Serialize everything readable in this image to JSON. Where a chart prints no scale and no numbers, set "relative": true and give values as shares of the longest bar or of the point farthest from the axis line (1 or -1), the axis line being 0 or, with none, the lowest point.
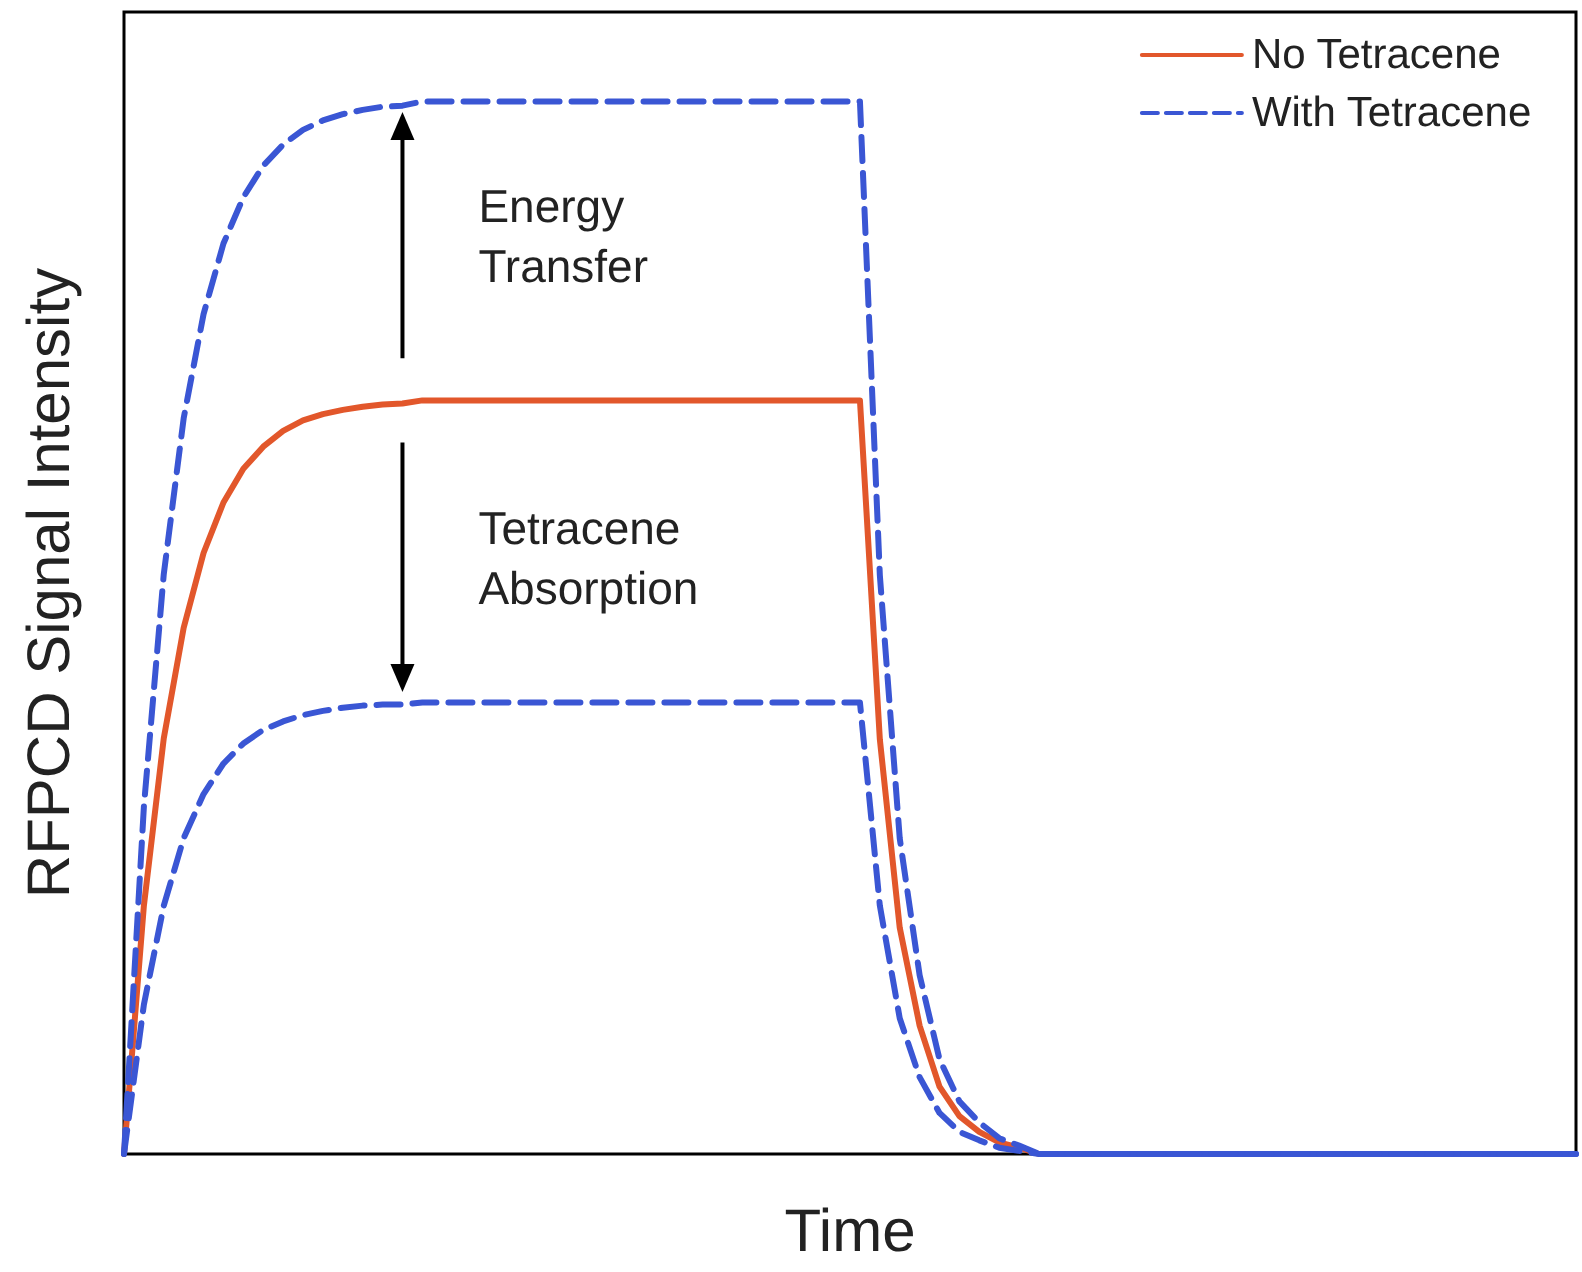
{
  "chart_data": {
    "type": "line",
    "relative": true,
    "xlabel": "Time",
    "ylabel": "RFPCD Signal Intensity",
    "legend": "top right",
    "grid": false,
    "marker": "none",
    "categories": [
      null,
      null,
      null,
      null,
      null,
      null,
      null,
      null,
      null,
      null,
      null,
      null,
      null,
      null,
      null,
      null,
      null,
      null,
      null,
      null,
      null,
      null,
      null,
      null,
      null,
      null,
      null,
      null,
      null,
      null,
      null,
      null,
      null,
      null,
      null,
      null,
      null,
      null,
      null,
      null,
      null,
      null,
      null,
      null,
      null,
      null,
      null,
      null,
      null,
      null,
      null,
      null,
      null,
      null,
      null,
      null,
      null,
      null,
      null,
      null,
      null,
      null,
      null,
      null,
      null,
      null,
      null,
      null,
      null,
      null,
      null,
      null,
      null,
      null
    ],
    "series": [
      {
        "name": "No Tetracene",
        "color": "#e2572b",
        "line_style": "solid",
        "values": [
          0,
          0.236,
          0.395,
          0.5,
          0.571,
          0.619,
          0.651,
          0.672,
          0.687,
          0.697,
          0.703,
          0.707,
          0.71,
          0.712,
          0.713,
          0.716,
          0.716,
          0.716,
          0.716,
          0.716,
          0.716,
          0.716,
          0.716,
          0.716,
          0.716,
          0.716,
          0.716,
          0.716,
          0.716,
          0.716,
          0.716,
          0.716,
          0.716,
          0.716,
          0.716,
          0.716,
          0.716,
          0.716,
          0.394,
          0.215,
          0.122,
          0.064,
          0.036,
          0.021,
          0.011,
          0.006,
          0,
          0,
          null,
          null,
          null,
          null,
          null,
          null,
          null,
          null,
          null,
          null,
          null,
          null,
          null,
          null,
          null,
          null,
          null,
          null,
          null,
          null,
          null,
          null,
          null,
          null,
          null,
          null
        ]
      },
      {
        "name": "With Tetracene",
        "color": "#3a56d4",
        "line_style": "dashed",
        "values": [
          0,
          0.33,
          0.551,
          0.699,
          0.798,
          0.865,
          0.909,
          0.939,
          0.959,
          0.973,
          0.982,
          0.988,
          0.992,
          0.995,
          0.996,
          1,
          1,
          1,
          1,
          1,
          1,
          1,
          1,
          1,
          1,
          1,
          1,
          1,
          1,
          1,
          1,
          1,
          1,
          1,
          1,
          1,
          1,
          1,
          0.55,
          0.3,
          0.17,
          0.09,
          0.05,
          0.03,
          0.015,
          0.008,
          0,
          0,
          0,
          0,
          0,
          0,
          0,
          0,
          0,
          0,
          0,
          0,
          0,
          0,
          0,
          0,
          0,
          0,
          0,
          0,
          0,
          0,
          0,
          0,
          0,
          0,
          0,
          0
        ]
      },
      {
        "color": "#3a56d4",
        "line_style": "dashed",
        "values": [
          0,
          0.142,
          0.236,
          0.3,
          0.342,
          0.371,
          0.39,
          0.403,
          0.411,
          0.417,
          0.421,
          0.424,
          0.426,
          0.427,
          0.427,
          0.429,
          0.429,
          0.429,
          0.429,
          0.429,
          0.429,
          0.429,
          0.429,
          0.429,
          0.429,
          0.429,
          0.429,
          0.429,
          0.429,
          0.429,
          0.429,
          0.429,
          0.429,
          0.429,
          0.429,
          0.429,
          0.429,
          0.429,
          0.236,
          0.129,
          0.073,
          0.039,
          0.021,
          0.013,
          0.006,
          0.003,
          0,
          0,
          0,
          0,
          0,
          0,
          0,
          0,
          0,
          0,
          0,
          0,
          0,
          0,
          0,
          0,
          0,
          0,
          0,
          0,
          0,
          0,
          0,
          0,
          0,
          0,
          0,
          0
        ]
      }
    ],
    "annotations": [
      "Energy Transfer",
      "Tetracene Absorption"
    ]
  }
}
